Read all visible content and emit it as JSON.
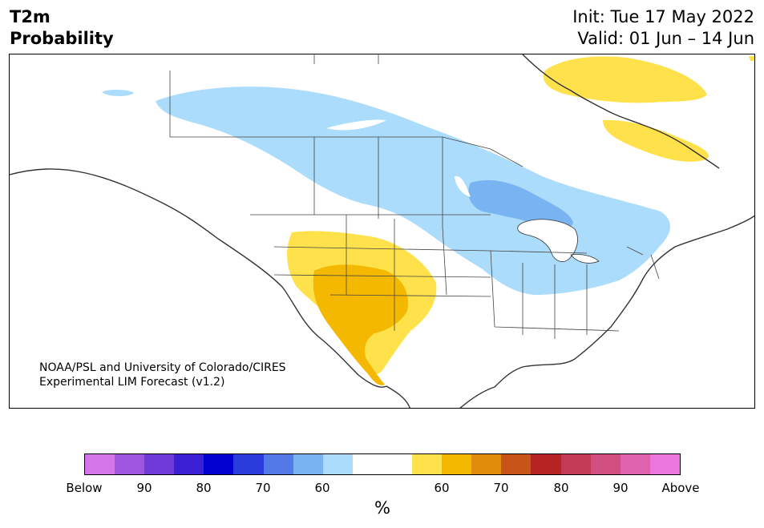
{
  "title": {
    "left_line1": "T2m",
    "left_line2": "Probability",
    "init": "Init: Tue 17 May 2022",
    "valid": "Valid: 01 Jun – 14 Jun"
  },
  "credit": {
    "line1": "NOAA/PSL and University of Colorado/CIRES",
    "line2": "Experimental LIM Forecast (v1.2)"
  },
  "colorbar": {
    "colors": [
      "#d376ea",
      "#9e55e0",
      "#6e3bd9",
      "#3a1fd4",
      "#0000d1",
      "#2a3cdb",
      "#5279e6",
      "#79b3f2",
      "#acdcfb",
      "#ffffff",
      "#ffffff",
      "#ffe24b",
      "#f4b800",
      "#e08b0a",
      "#c8541a",
      "#b52323",
      "#c23a55",
      "#d04f80",
      "#de62ae",
      "#ea77dc"
    ],
    "tick_labels": [
      "Below",
      "90",
      "80",
      "70",
      "60",
      "60",
      "70",
      "80",
      "90",
      "Above"
    ],
    "unit": "%"
  },
  "map_colors": {
    "light_blue": "#acdcfb",
    "mid_blue": "#79b3f2",
    "yellow": "#ffe24b",
    "orange": "#f4b800",
    "coast": "#333333",
    "border": "#444444"
  }
}
